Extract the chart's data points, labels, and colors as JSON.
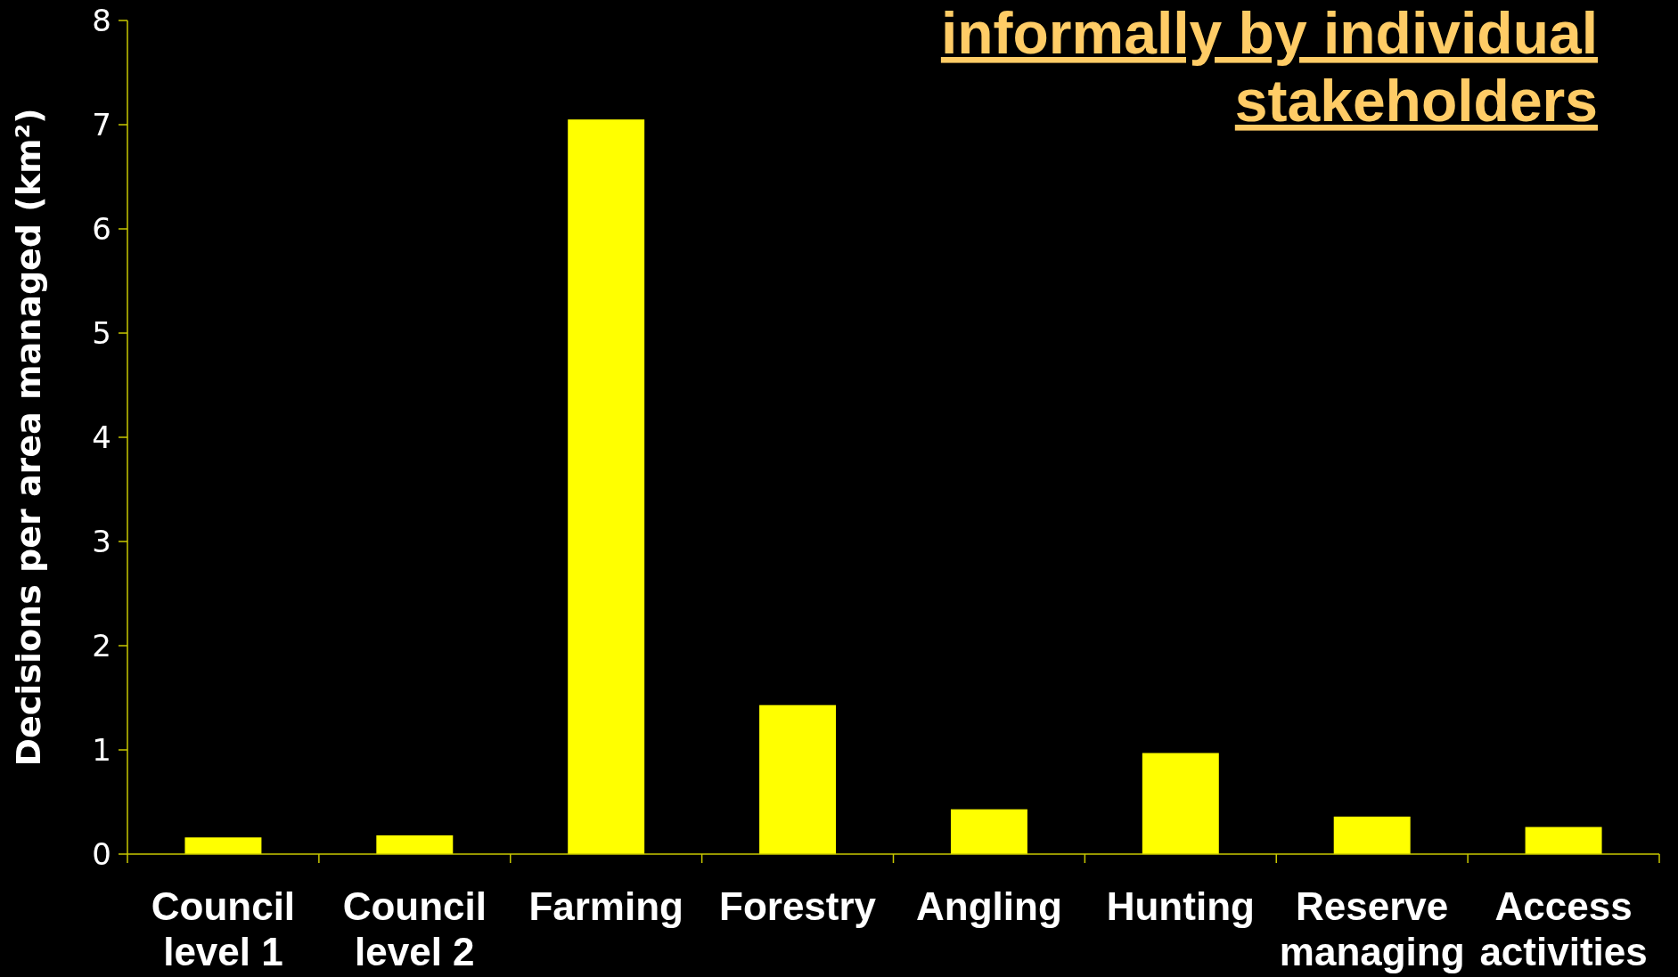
{
  "chart_data": {
    "type": "bar",
    "title": "informally by individual stakeholders",
    "ylabel": "Decisions per area managed (km²)",
    "categories": [
      "Council\nlevel 1",
      "Council\nlevel 2",
      "Farming",
      "Forestry",
      "Angling",
      "Hunting",
      "Reserve\nmanaging",
      "Access\nactivities"
    ],
    "values": [
      0.16,
      0.18,
      7.05,
      1.43,
      0.43,
      0.97,
      0.36,
      0.26
    ],
    "color": "#ffff00",
    "ylim": [
      0,
      8
    ],
    "yticks": [
      0,
      1,
      2,
      3,
      4,
      5,
      6,
      7,
      8
    ],
    "grid": false
  }
}
